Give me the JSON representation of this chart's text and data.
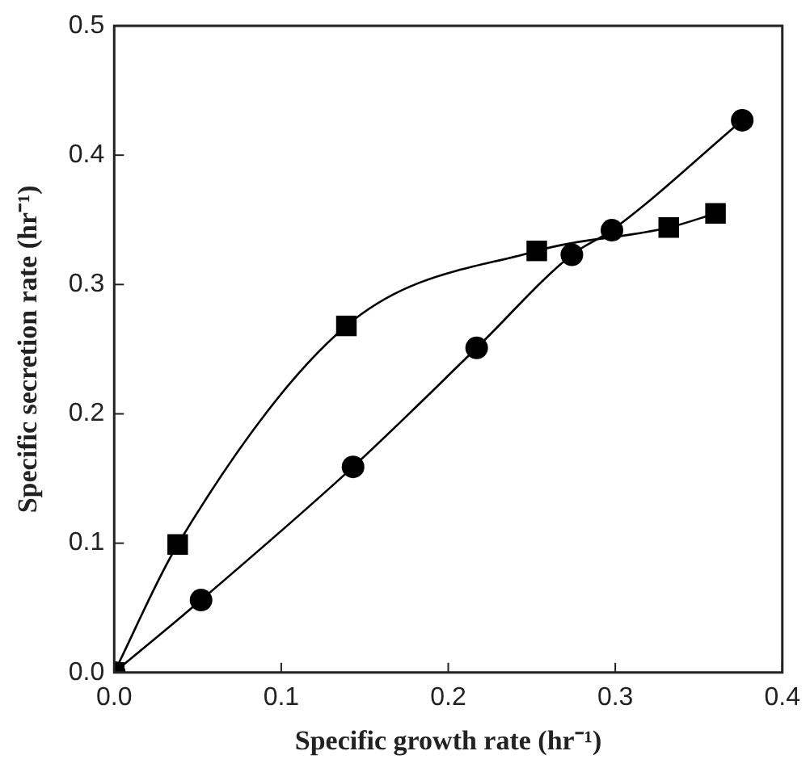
{
  "chart_data": {
    "type": "line",
    "xlabel": "Specific growth rate (hr⁻¹)",
    "ylabel": "Specific secretion rate (hr⁻¹)",
    "xlim": [
      0,
      0.4
    ],
    "xticks": [
      {
        "value": 0,
        "label": "0.0"
      },
      0.1,
      0.2,
      0.3,
      0.4
    ],
    "ylim": [
      0,
      0.5
    ],
    "yticks": [
      {
        "value": 0,
        "label": "0.0"
      },
      0.1,
      0.2,
      0.3,
      0.4,
      0.5
    ],
    "grid": false,
    "legend": false,
    "line_style": "solid",
    "series": [
      {
        "color": "#000000",
        "marker": "circle",
        "x": [
          0,
          0.052,
          0.143,
          0.217,
          0.274,
          0.298,
          0.376
        ],
        "values": [
          0,
          0.056,
          0.159,
          0.251,
          0.323,
          0.342,
          0.427
        ]
      },
      {
        "color": "#000000",
        "marker": "square",
        "x": [
          0,
          0.038,
          0.139,
          0.253,
          0.332,
          0.36
        ],
        "values": [
          0,
          0.099,
          0.268,
          0.326,
          0.344,
          0.355
        ]
      }
    ]
  }
}
